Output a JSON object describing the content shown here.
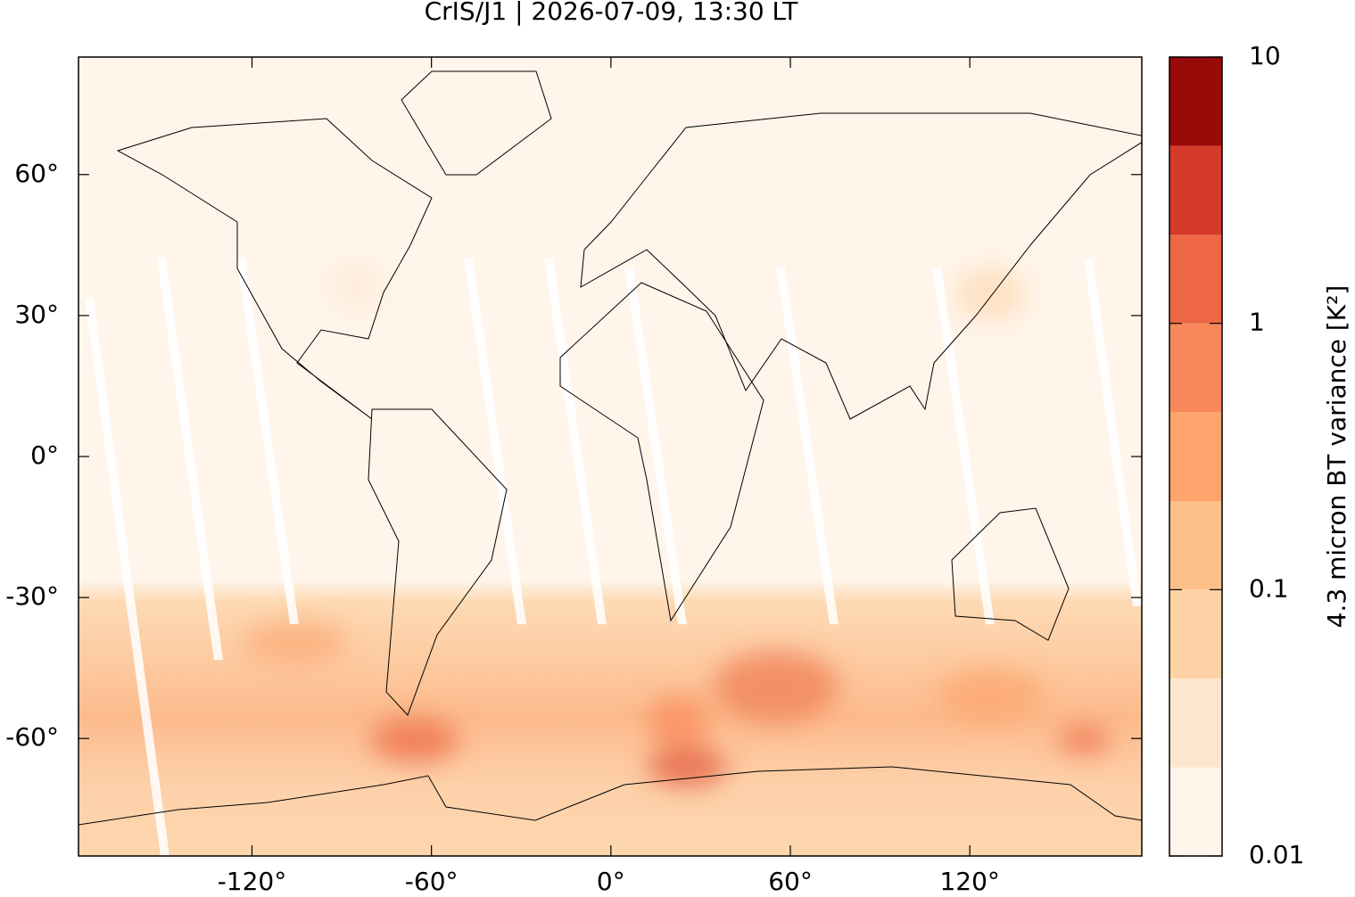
{
  "chart_data": {
    "type": "map-field",
    "title": "CrIS/J1 | 2026-07-09, 13:30 LT",
    "xlim": [
      -178,
      177.5
    ],
    "ylim": [
      -85,
      85
    ],
    "xticks": [
      {
        "value": -120,
        "label": "-120°"
      },
      {
        "value": -60,
        "label": "-60°"
      },
      {
        "value": 0,
        "label": "0°"
      },
      {
        "value": 60,
        "label": "60°"
      },
      {
        "value": 120,
        "label": "120°"
      }
    ],
    "yticks": [
      {
        "value": 60,
        "label": "60°"
      },
      {
        "value": 30,
        "label": "30°"
      },
      {
        "value": 0,
        "label": "0°"
      },
      {
        "value": -30,
        "label": "-30°"
      },
      {
        "value": -60,
        "label": "-60°"
      }
    ],
    "colorbar": {
      "label": "4.3 micron BT variance [K²]",
      "log": true,
      "lim": [
        0.01,
        10
      ],
      "ticks": [
        0.01,
        0.1,
        1,
        10
      ],
      "levels": [
        0.01,
        0.0215,
        0.0464,
        0.1,
        0.215,
        0.464,
        1,
        2.15,
        4.64,
        10
      ],
      "colors": [
        "#fff5eb",
        "#fee6ce",
        "#fdd3a6",
        "#fdbf88",
        "#fca46c",
        "#f8885a",
        "#ed6745",
        "#d53a28",
        "#9a0a08"
      ]
    }
  }
}
